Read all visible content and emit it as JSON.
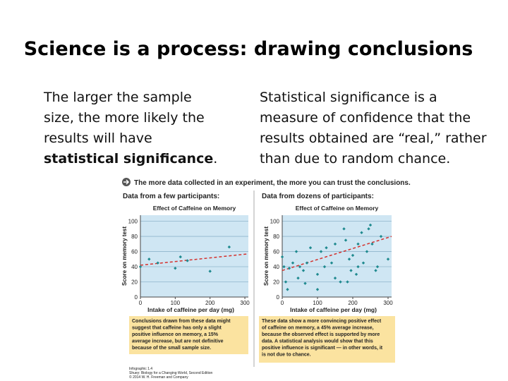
{
  "slide": {
    "title": "Science is a process:  drawing conclusions",
    "left_text": [
      "The larger the sample",
      "size, the more likely the",
      "results will have"
    ],
    "left_bold": "statistical significance",
    "left_end": ".",
    "right_text": [
      "Statistical significance is a",
      "measure of confidence that the",
      "results obtained are “real,” rather",
      "than due to random chance."
    ]
  },
  "infographic": {
    "banner": "The more data collected in an experiment, the more you can trust the conclusions.",
    "credit": [
      "Infographic 1.4",
      "Shuey: Biology for a Changing World, Second Edition",
      "© 2014 W. H. Freeman and Company"
    ]
  },
  "chart_data": [
    {
      "type": "scatter",
      "header": "Data from a few participants:",
      "title": "Effect of Caffeine on Memory",
      "x_label": "Intake of caffeine per day (mg)",
      "y_label": "Score on memory test",
      "x": [
        0,
        25,
        50,
        100,
        115,
        135,
        200,
        255
      ],
      "values": [
        40,
        50,
        45,
        38,
        53,
        48,
        34,
        66
      ],
      "color": "#1f8a8f",
      "trend": {
        "x": [
          0,
          310
        ],
        "y": [
          42,
          57
        ],
        "color": "#d4302c"
      },
      "xlim": [
        0,
        310
      ],
      "ylim": [
        0,
        108
      ],
      "xticks": [
        0,
        100,
        200,
        300
      ],
      "yticks": [
        0,
        20,
        40,
        60,
        80,
        100
      ],
      "grid": true,
      "caption": [
        "Conclusions drawn from these data might",
        "suggest that caffeine has only a slight",
        "positive influence on memory, a 15%",
        "average increase, but are not definitive",
        "because of the small sample size."
      ]
    },
    {
      "type": "scatter",
      "header": "Data from dozens of participants:",
      "title": "Effect of Caffeine on Memory",
      "x_label": "Intake of caffeine per day (mg)",
      "y_label": "Score on memory test",
      "x": [
        0,
        5,
        10,
        15,
        20,
        30,
        40,
        45,
        50,
        60,
        65,
        70,
        80,
        100,
        100,
        110,
        120,
        125,
        140,
        150,
        150,
        165,
        175,
        180,
        185,
        190,
        195,
        200,
        210,
        215,
        215,
        225,
        230,
        240,
        245,
        250,
        255,
        265,
        270,
        280,
        300
      ],
      "values": [
        53,
        40,
        20,
        10,
        38,
        45,
        60,
        25,
        40,
        35,
        18,
        45,
        65,
        30,
        10,
        60,
        40,
        65,
        45,
        25,
        70,
        20,
        90,
        75,
        20,
        50,
        35,
        55,
        30,
        70,
        40,
        85,
        45,
        60,
        90,
        95,
        70,
        35,
        40,
        80,
        50
      ],
      "color": "#1f8a8f",
      "trend": {
        "x": [
          0,
          310
        ],
        "y": [
          35,
          80
        ],
        "color": "#d4302c"
      },
      "xlim": [
        0,
        310
      ],
      "ylim": [
        0,
        108
      ],
      "xticks": [
        0,
        100,
        200,
        300
      ],
      "yticks": [
        0,
        20,
        40,
        60,
        80,
        100
      ],
      "grid": true,
      "caption": [
        "These data show a more convincing positive effect",
        "of caffeine on memory, a 45% average increase,",
        "because the observed effect is supported by more",
        "data. A statistical analysis would show that this",
        "positive influence is significant — in other words, it",
        "is not due to chance."
      ]
    }
  ]
}
